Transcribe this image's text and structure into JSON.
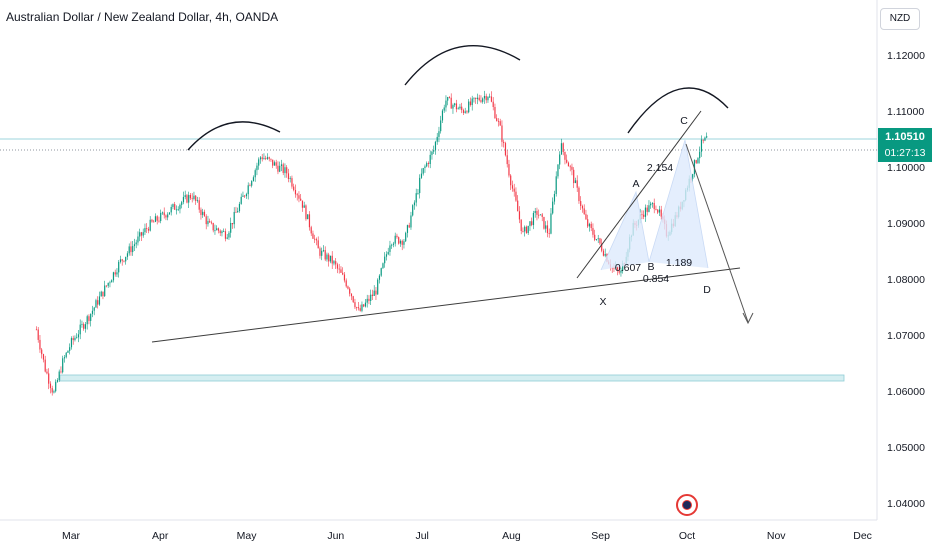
{
  "header": {
    "title": "Australian Dollar / New Zealand Dollar, 4h, OANDA"
  },
  "toolbar": {
    "currency_label": "NZD"
  },
  "last_price": {
    "price": "1.10510",
    "countdown": "01:27:13"
  },
  "colors": {
    "up": "#089981",
    "down": "#f23645",
    "zone": "#b2dfe3",
    "pattern_fill": "#ddeafc"
  },
  "chart_data": {
    "type": "candlestick",
    "title": "Australian Dollar / New Zealand Dollar, 4h, OANDA",
    "y_ticks": [
      1.04,
      1.05,
      1.06,
      1.07,
      1.08,
      1.09,
      1.1,
      1.11,
      1.12
    ],
    "y_tick_labels": [
      "1.04000",
      "1.05000",
      "1.06000",
      "1.07000",
      "1.08000",
      "1.09000",
      "1.10000",
      "1.11000",
      "1.12000"
    ],
    "x_ticks": [
      "Mar",
      "Apr",
      "May",
      "Jun",
      "Jul",
      "Aug",
      "Sep",
      "Oct",
      "Nov",
      "Dec"
    ],
    "ylim": [
      1.0345,
      1.1295
    ],
    "grid": false,
    "close_path": [
      [
        "Feb 17",
        1.071
      ],
      [
        "Feb 20",
        1.064
      ],
      [
        "Feb 23",
        1.0595
      ],
      [
        "Feb 26",
        1.065
      ],
      [
        "Mar 1",
        1.0685
      ],
      [
        "Mar 8",
        1.074
      ],
      [
        "Mar 18",
        1.083
      ],
      [
        "Mar 28",
        1.0895
      ],
      [
        "Apr 5",
        1.0925
      ],
      [
        "Apr 12",
        1.095
      ],
      [
        "Apr 18",
        1.0895
      ],
      [
        "Apr 24",
        1.088
      ],
      [
        "May 1",
        1.096
      ],
      [
        "May 6",
        1.102
      ],
      [
        "May 15",
        1.099
      ],
      [
        "May 20",
        1.094
      ],
      [
        "May 26",
        1.085
      ],
      [
        "May 31",
        1.083
      ],
      [
        "Jun 5",
        1.079
      ],
      [
        "Jun 9",
        1.074
      ],
      [
        "Jun 15",
        1.078
      ],
      [
        "Jun 20",
        1.087
      ],
      [
        "Jun 25",
        1.087
      ],
      [
        "Jul 1",
        1.099
      ],
      [
        "Jul 5",
        1.103
      ],
      [
        "Jul 9",
        1.112
      ],
      [
        "Jul 15",
        1.11
      ],
      [
        "Jul 20",
        1.112
      ],
      [
        "Jul 24",
        1.113
      ],
      [
        "Jul 28",
        1.107
      ],
      [
        "Aug 1",
        1.097
      ],
      [
        "Aug 5",
        1.088
      ],
      [
        "Aug 10",
        1.092
      ],
      [
        "Aug 14",
        1.088
      ],
      [
        "Aug 18",
        1.104
      ],
      [
        "Aug 22",
        1.099
      ],
      [
        "Aug 27",
        1.09
      ],
      [
        "Sep 1",
        1.086
      ],
      [
        "Sep 5",
        1.082
      ],
      [
        "Sep 8",
        1.081
      ],
      [
        "Sep 12",
        1.089
      ],
      [
        "Sep 16",
        1.092
      ],
      [
        "Sep 20",
        1.0935
      ],
      [
        "Sep 24",
        1.088
      ],
      [
        "Sep 28",
        1.092
      ],
      [
        "Oct 2",
        1.098
      ],
      [
        "Oct 6",
        1.104
      ],
      [
        "Oct 8",
        1.1051
      ]
    ],
    "last_price": 1.1051,
    "annotations": {
      "pattern_labels": [
        "X",
        "A",
        "B",
        "C",
        "D"
      ],
      "ratios": [
        "0.607",
        "2.154",
        "0.854",
        "1.189"
      ]
    }
  }
}
